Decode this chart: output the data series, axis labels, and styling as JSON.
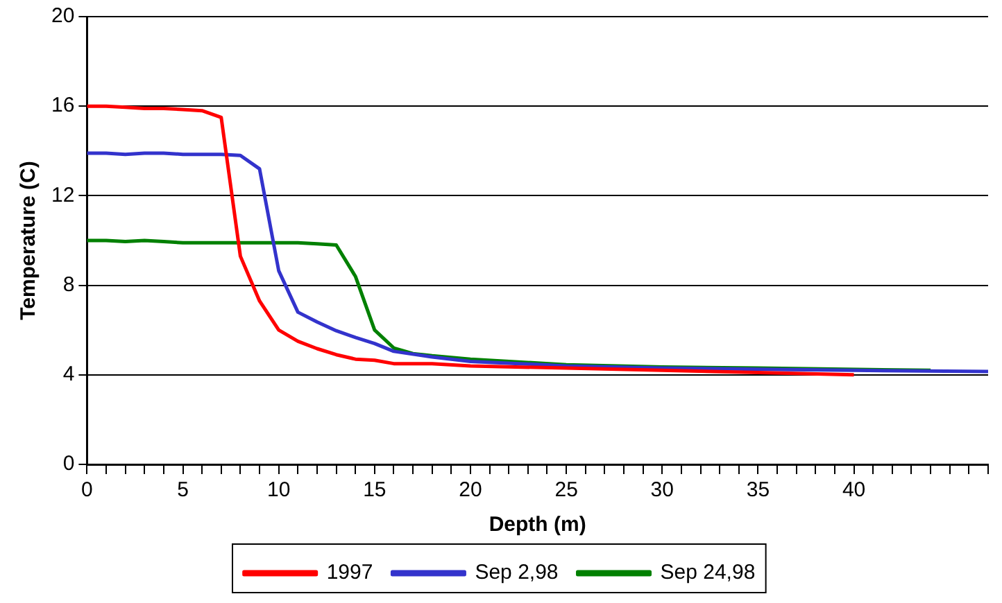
{
  "chart_data": {
    "type": "line",
    "xlabel": "Depth (m)",
    "ylabel": "Temperature (C)",
    "xlim": [
      0,
      47
    ],
    "xticks": [
      0,
      {
        "value": 1,
        "label": null
      },
      {
        "value": 2,
        "label": null
      },
      {
        "value": 3,
        "label": null
      },
      {
        "value": 4,
        "label": null
      },
      5,
      {
        "value": 6,
        "label": null
      },
      {
        "value": 7,
        "label": null
      },
      {
        "value": 8,
        "label": null
      },
      {
        "value": 9,
        "label": null
      },
      10,
      {
        "value": 11,
        "label": null
      },
      {
        "value": 12,
        "label": null
      },
      {
        "value": 13,
        "label": null
      },
      {
        "value": 14,
        "label": null
      },
      15,
      {
        "value": 16,
        "label": null
      },
      {
        "value": 17,
        "label": null
      },
      {
        "value": 18,
        "label": null
      },
      {
        "value": 19,
        "label": null
      },
      20,
      {
        "value": 21,
        "label": null
      },
      {
        "value": 22,
        "label": null
      },
      {
        "value": 23,
        "label": null
      },
      {
        "value": 24,
        "label": null
      },
      25,
      {
        "value": 26,
        "label": null
      },
      {
        "value": 27,
        "label": null
      },
      {
        "value": 28,
        "label": null
      },
      {
        "value": 29,
        "label": null
      },
      30,
      {
        "value": 31,
        "label": null
      },
      {
        "value": 32,
        "label": null
      },
      {
        "value": 33,
        "label": null
      },
      {
        "value": 34,
        "label": null
      },
      35,
      {
        "value": 36,
        "label": null
      },
      {
        "value": 37,
        "label": null
      },
      {
        "value": 38,
        "label": null
      },
      {
        "value": 39,
        "label": null
      },
      40,
      {
        "value": 41,
        "label": null
      },
      {
        "value": 42,
        "label": null
      },
      {
        "value": 43,
        "label": null
      },
      {
        "value": 44,
        "label": null
      },
      {
        "value": 45,
        "label": null
      },
      {
        "value": 46,
        "label": null
      },
      {
        "value": 47,
        "label": null
      }
    ],
    "ylim": [
      0,
      20
    ],
    "yticks": [
      0,
      4,
      8,
      12,
      16,
      20
    ],
    "grid": "y",
    "legend": "bottom",
    "marker": "none",
    "line_style": "solid",
    "series": [
      {
        "name": "1997",
        "color": "#ff0000",
        "x": [
          0,
          1,
          2,
          3,
          4,
          5,
          6,
          7,
          8,
          9,
          10,
          11,
          12,
          13,
          14,
          15,
          16,
          18,
          20,
          25,
          30,
          35,
          40
        ],
        "values": [
          16.0,
          16.0,
          15.95,
          15.9,
          15.9,
          15.85,
          15.8,
          15.5,
          9.3,
          7.3,
          6.0,
          5.5,
          5.17,
          4.9,
          4.7,
          4.65,
          4.5,
          4.5,
          4.4,
          4.3,
          4.2,
          4.1,
          4.0
        ]
      },
      {
        "name": "Sep 2,98",
        "color": "#3333cc",
        "x": [
          0,
          1,
          2,
          3,
          4,
          5,
          6,
          7,
          8,
          9,
          10,
          11,
          12,
          13,
          14,
          15,
          16,
          18,
          20,
          25,
          30,
          35,
          40,
          47
        ],
        "values": [
          13.9,
          13.9,
          13.85,
          13.9,
          13.9,
          13.85,
          13.85,
          13.85,
          13.8,
          13.2,
          8.65,
          6.8,
          6.36,
          5.97,
          5.67,
          5.4,
          5.05,
          4.8,
          4.6,
          4.4,
          4.3,
          4.25,
          4.2,
          4.15
        ]
      },
      {
        "name": "Sep 24,98",
        "color": "#008000",
        "x": [
          0,
          1,
          2,
          3,
          4,
          5,
          6,
          7,
          8,
          9,
          10,
          11,
          12,
          13,
          14,
          15,
          16,
          17,
          18,
          20,
          25,
          30,
          35,
          44
        ],
        "values": [
          10.0,
          10.0,
          9.95,
          10.0,
          9.95,
          9.9,
          9.9,
          9.9,
          9.9,
          9.9,
          9.9,
          9.9,
          9.85,
          9.8,
          8.4,
          6.0,
          5.2,
          4.95,
          4.85,
          4.7,
          4.45,
          4.35,
          4.3,
          4.2
        ]
      }
    ]
  }
}
